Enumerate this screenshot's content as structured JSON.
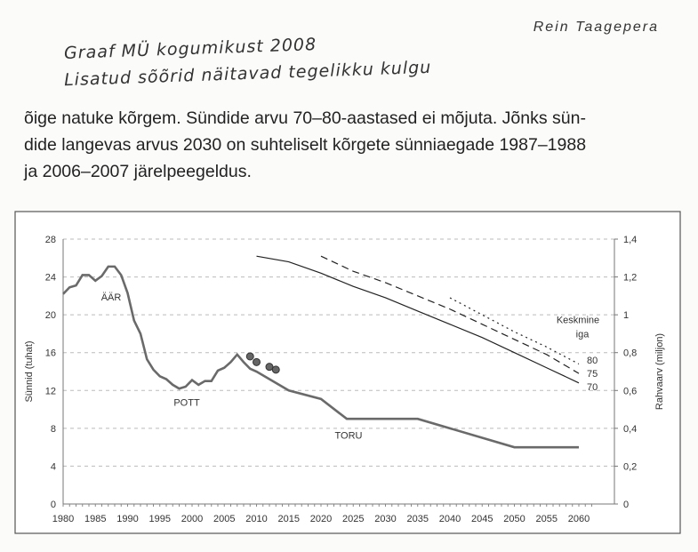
{
  "author": "Rein Taagepera",
  "handwritten_note": [
    "Graaf MÜ kogumikust 2008",
    "Lisatud sõõrid näitavad tegelikku kulgu"
  ],
  "paragraph_lines": [
    "õige natuke kõrgem. Sündide arvu 70–80-aastased ei mõjuta. Jõnks sün-",
    "dide langevas arvus 2030 on suhteliselt kõrgete sünniaegade 1987–1988",
    "ja 2006–2007 järelpeegeldus."
  ],
  "chart_data": {
    "type": "line",
    "title": "",
    "xlabel": "",
    "ylabel": "Sünnid (tuhat)",
    "y2label": "Rahvaarv (miljon)",
    "xlim": [
      1980,
      2060
    ],
    "ylim": [
      0,
      28
    ],
    "y2lim": [
      0,
      1.4
    ],
    "x_ticks": [
      "1980",
      "1985",
      "1990",
      "1995",
      "2000",
      "2005",
      "2010",
      "2015",
      "2020",
      "2025",
      "2030",
      "2035",
      "2040",
      "2045",
      "2050",
      "2055",
      "2060"
    ],
    "y_ticks": [
      "0",
      "4",
      "8",
      "12",
      "16",
      "20",
      "24",
      "28"
    ],
    "y2_ticks": [
      "0",
      "0,2",
      "0,4",
      "0,6",
      "0,8",
      "1",
      "1,2",
      "1,4"
    ],
    "grid": true,
    "annotations": [
      "ÄÄR",
      "POTT",
      "TORU"
    ],
    "legend_title": [
      "Keskmine",
      "iga"
    ],
    "births": {
      "name": "Sünnid",
      "axis": "left",
      "x": [
        1980,
        1981,
        1982,
        1983,
        1984,
        1985,
        1986,
        1987,
        1988,
        1989,
        1990,
        1991,
        1992,
        1993,
        1994,
        1995,
        1996,
        1997,
        1998,
        1999,
        2000,
        2001,
        2002,
        2003,
        2004,
        2005,
        2006,
        2007,
        2008,
        2009,
        2010,
        2015,
        2020,
        2024,
        2035,
        2050,
        2060
      ],
      "values": [
        22.2,
        22.9,
        23.1,
        24.2,
        24.2,
        23.6,
        24.1,
        25.1,
        25.1,
        24.2,
        22.3,
        19.4,
        18.0,
        15.3,
        14.2,
        13.5,
        13.2,
        12.6,
        12.2,
        12.4,
        13.1,
        12.6,
        13.0,
        13.0,
        14.1,
        14.4,
        15.0,
        15.8,
        15.0,
        14.3,
        14.0,
        12.0,
        11.1,
        9.0,
        9.0,
        6.0,
        6.0
      ]
    },
    "actual_births_circles": {
      "x": [
        2009,
        2010,
        2012,
        2013
      ],
      "values": [
        15.6,
        15.0,
        14.5,
        14.2
      ]
    },
    "population": [
      {
        "name": "70",
        "axis": "right",
        "style": "solid",
        "x": [
          2010,
          2015,
          2020,
          2025,
          2030,
          2035,
          2040,
          2045,
          2050,
          2055,
          2060
        ],
        "values": [
          1.31,
          1.28,
          1.22,
          1.15,
          1.09,
          1.02,
          0.95,
          0.88,
          0.8,
          0.72,
          0.64
        ]
      },
      {
        "name": "75",
        "axis": "right",
        "style": "dashed",
        "x": [
          2020,
          2025,
          2030,
          2035,
          2040,
          2045,
          2050,
          2055,
          2060
        ],
        "values": [
          1.31,
          1.23,
          1.17,
          1.1,
          1.03,
          0.95,
          0.87,
          0.79,
          0.69
        ]
      },
      {
        "name": "80",
        "axis": "right",
        "style": "dotted",
        "x": [
          2040,
          2045,
          2050,
          2055,
          2060
        ],
        "values": [
          1.09,
          1.0,
          0.91,
          0.83,
          0.74
        ]
      }
    ]
  }
}
